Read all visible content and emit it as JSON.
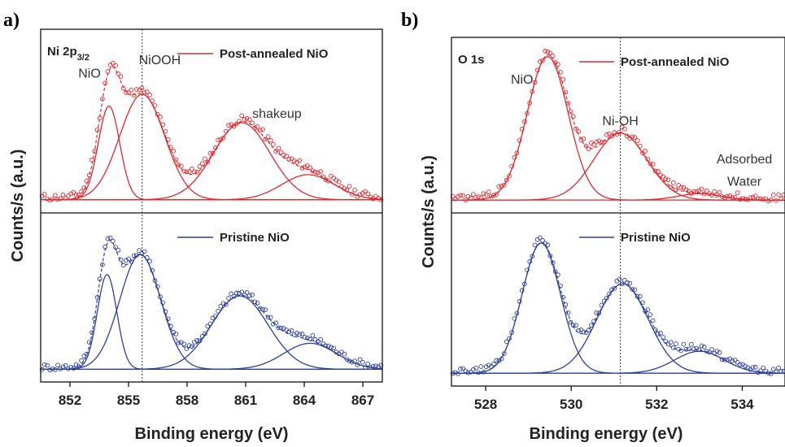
{
  "panel_labels": [
    "a)",
    "b)"
  ],
  "chart_data": [
    {
      "id": "a",
      "type": "line",
      "panel_label": "a)",
      "xlabel": "Binding energy (eV)",
      "ylabel": "Counts/s (a.u.)",
      "xlim": [
        850.5,
        868
      ],
      "x_reversed": false,
      "xticks": [
        852,
        855,
        858,
        861,
        864,
        867
      ],
      "grid": false,
      "reference_line_x": 855.7,
      "subpanels": [
        {
          "position": "top",
          "corner_label": "Ni 2p",
          "corner_sub": "3/2",
          "legend": "Post-annealed NiO",
          "color": "#e0282e",
          "ylim": [
            0,
            1.0
          ],
          "baseline": 0.03,
          "peaks": [
            {
              "label": "NiO",
              "center": 854.0,
              "amp": 0.56,
              "sigma": 0.55
            },
            {
              "label": "NiOOH",
              "center": 855.7,
              "amp": 0.63,
              "sigma": 1.15
            },
            {
              "label": "shakeup",
              "center": 860.8,
              "amp": 0.46,
              "sigma": 1.45
            },
            {
              "label": "",
              "center": 864.2,
              "amp": 0.15,
              "sigma": 1.35
            }
          ],
          "annotations": [
            {
              "text": "NiO",
              "x": 853.0,
              "y": 0.76
            },
            {
              "text": "NiOOH",
              "x": 856.6,
              "y": 0.84
            },
            {
              "text": "shakeup",
              "x": 862.6,
              "y": 0.52
            }
          ]
        },
        {
          "position": "bottom",
          "legend": "Pristine NiO",
          "color": "#2e3f9c",
          "ylim": [
            0,
            1.0
          ],
          "baseline": 0.03,
          "peaks": [
            {
              "label": "",
              "center": 853.9,
              "amp": 0.62,
              "sigma": 0.5
            },
            {
              "label": "",
              "center": 855.6,
              "amp": 0.75,
              "sigma": 1.05
            },
            {
              "label": "",
              "center": 860.7,
              "amp": 0.48,
              "sigma": 1.45
            },
            {
              "label": "",
              "center": 864.3,
              "amp": 0.17,
              "sigma": 1.35
            }
          ],
          "annotations": []
        }
      ]
    },
    {
      "id": "b",
      "type": "line",
      "panel_label": "b)",
      "xlabel": "Binding energy (eV)",
      "ylabel": "Counts/s (a.u.)",
      "xlim": [
        527.2,
        535
      ],
      "x_reversed": false,
      "xticks": [
        528,
        530,
        532,
        534
      ],
      "grid": false,
      "reference_line_x": 531.15,
      "subpanels": [
        {
          "position": "top",
          "corner_label": "O 1s",
          "corner_sub": "",
          "legend": "Post-annealed NiO",
          "color": "#e0282e",
          "ylim": [
            0,
            1.0
          ],
          "baseline": 0.03,
          "peaks": [
            {
              "label": "NiO",
              "center": 529.45,
              "amp": 0.9,
              "sigma": 0.48
            },
            {
              "label": "Ni-OH",
              "center": 531.15,
              "amp": 0.42,
              "sigma": 0.62
            },
            {
              "label": "Adsorbed Water",
              "center": 533.0,
              "amp": 0.04,
              "sigma": 0.5
            }
          ],
          "annotations": [
            {
              "text": "NiO",
              "x": 528.85,
              "y": 0.76
            },
            {
              "text": "Ni-OH",
              "x": 531.15,
              "y": 0.5
            },
            {
              "text": "Adsorbed",
              "x": 534.05,
              "y": 0.26
            },
            {
              "text": "Water",
              "x": 534.05,
              "y": 0.12
            }
          ]
        },
        {
          "position": "bottom",
          "legend": "Pristine NiO",
          "color": "#2e3f9c",
          "ylim": [
            0,
            1.0
          ],
          "baseline": 0.03,
          "peaks": [
            {
              "label": "",
              "center": 529.3,
              "amp": 0.83,
              "sigma": 0.45
            },
            {
              "label": "",
              "center": 531.2,
              "amp": 0.57,
              "sigma": 0.6
            },
            {
              "label": "",
              "center": 533.0,
              "amp": 0.14,
              "sigma": 0.58
            }
          ],
          "annotations": []
        }
      ]
    }
  ]
}
